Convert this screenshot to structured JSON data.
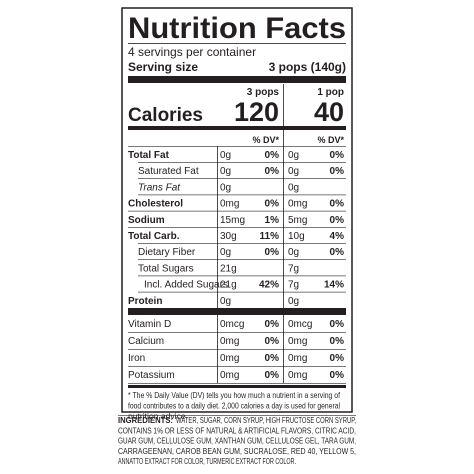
{
  "title": "Nutrition Facts",
  "servings": "4 servings per container",
  "serving_size": {
    "label": "Serving size",
    "value": "3 pops (140g)"
  },
  "columns": [
    "3 pops",
    "1 pop"
  ],
  "calories": {
    "label": "Calories",
    "values": [
      "120",
      "40"
    ]
  },
  "dv_header": [
    "% DV*",
    "% DV*"
  ],
  "rows": [
    {
      "label": "Total Fat",
      "bold": true,
      "indent": 0,
      "amounts": [
        "0g",
        "0g"
      ],
      "dv": [
        "0%",
        "0%"
      ]
    },
    {
      "label": "Saturated Fat",
      "bold": false,
      "indent": 1,
      "amounts": [
        "0g",
        "0g"
      ],
      "dv": [
        "0%",
        "0%"
      ]
    },
    {
      "label": "Trans Fat",
      "bold": false,
      "italic": true,
      "indent": 1,
      "amounts": [
        "0g",
        "0g"
      ]
    },
    {
      "label": "Cholesterol",
      "bold": true,
      "indent": 0,
      "amounts": [
        "0mg",
        "0mg"
      ],
      "dv": [
        "0%",
        "0%"
      ]
    },
    {
      "label": "Sodium",
      "bold": true,
      "indent": 0,
      "amounts": [
        "15mg",
        "5mg"
      ],
      "dv": [
        "1%",
        "0%"
      ]
    },
    {
      "label": "Total Carb.",
      "bold": true,
      "indent": 0,
      "amounts": [
        "30g",
        "10g"
      ],
      "dv": [
        "11%",
        "4%"
      ]
    },
    {
      "label": "Dietary Fiber",
      "bold": false,
      "indent": 1,
      "amounts": [
        "0g",
        "0g"
      ],
      "dv": [
        "0%",
        "0%"
      ]
    },
    {
      "label": "Total Sugars",
      "bold": false,
      "indent": 1,
      "amounts": [
        "21g",
        "7g"
      ]
    },
    {
      "label": "Incl. Added Sugars",
      "bold": false,
      "indent": 2,
      "amounts": [
        "21g",
        "7g"
      ],
      "dv": [
        "42%",
        "14%"
      ]
    },
    {
      "label": "Protein",
      "bold": true,
      "indent": 0,
      "amounts": [
        "0g",
        "0g"
      ]
    }
  ],
  "vitamins": [
    {
      "label": "Vitamin D",
      "amounts": [
        "0mcg",
        "0mcg"
      ],
      "dv": [
        "0%",
        "0%"
      ]
    },
    {
      "label": "Calcium",
      "amounts": [
        "0mg",
        "0mg"
      ],
      "dv": [
        "0%",
        "0%"
      ]
    },
    {
      "label": "Iron",
      "amounts": [
        "0mg",
        "0mg"
      ],
      "dv": [
        "0%",
        "0%"
      ]
    },
    {
      "label": "Potassium",
      "amounts": [
        "0mg",
        "0mg"
      ],
      "dv": [
        "0%",
        "0%"
      ]
    }
  ],
  "footnote": [
    "* The % Daily Value (DV) tells you how much a nutrient in a serving of",
    "food contributes to a daily diet. 2,000 calories a day is used for general",
    "nutrition advice."
  ],
  "ingredients": {
    "label": "INGREDIENTS:",
    "lines": [
      "WATER, SUGAR, CORN SYRUP, HIGH FRUCTOSE CORN SYRUP,",
      "CONTAINS 1% OR LESS OF NATURAL & ARTIFICIAL FLAVORS, CITRIC ACID,",
      "GUAR GUM, CELLULOSE GUM, XANTHAN GUM, CELLULOSE GEL, TARA GUM,",
      "CARRAGEENAN, CAROB BEAN GUM, SUCRALOSE, RED 40, YELLOW 5,",
      "ANNATTO EXTRACT FOR COLOR, TURMERIC EXTRACT FOR COLOR."
    ]
  }
}
